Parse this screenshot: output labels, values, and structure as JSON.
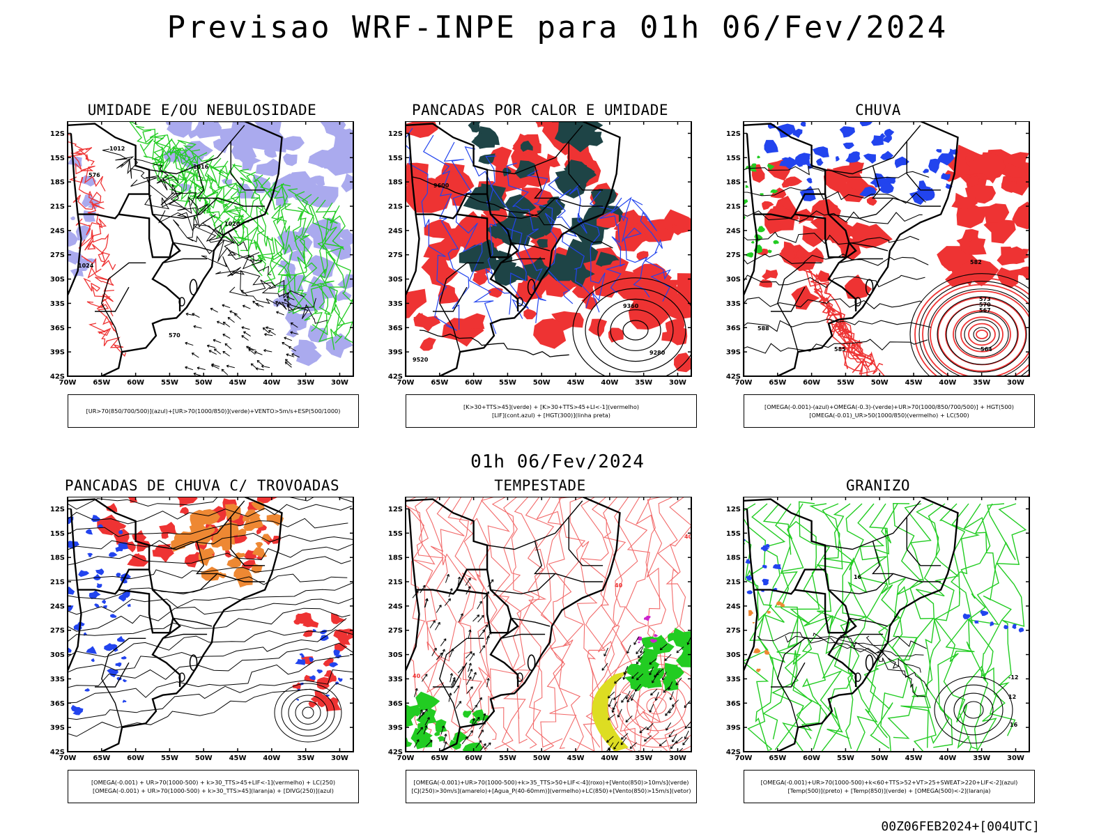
{
  "title": "Previsao WRF-INPE  para 01h 06/Fev/2024",
  "subtitle": "01h 06/Fev/2024",
  "footer": "00Z06FEB2024+[004UTC]",
  "axes": {
    "lat_labels": [
      "12S",
      "15S",
      "18S",
      "21S",
      "24S",
      "27S",
      "30S",
      "33S",
      "36S",
      "39S",
      "42S"
    ],
    "lon_labels": [
      "70W",
      "65W",
      "60W",
      "55W",
      "50W",
      "45W",
      "40W",
      "35W",
      "30W"
    ]
  },
  "colors": {
    "green": "#22cc22",
    "blue": "#2244ee",
    "red": "#ee3333",
    "light_red": "#f26a6a",
    "dark_teal": "#1e4446",
    "lavender": "#aaaaee",
    "orange": "#ee8833",
    "yellow": "#dddd22",
    "magenta": "#cc22cc"
  },
  "panels": [
    {
      "title": "UMIDADE E/OU NEBULOSIDADE",
      "legend": [
        "[UR>70(850/700/500)](azul)+[UR>70(1000/850)](verde)+VENTO>5m/s+ESP(500/1000)"
      ],
      "contour_labels": [
        "1012",
        "1016",
        "1020",
        "1024",
        "576",
        "570"
      ]
    },
    {
      "title": "PANCADAS POR CALOR E UMIDADE",
      "legend": [
        "[K>30+TTS>45](verde) + [K>30+TTS>45+LI<-1](vermelho)",
        "[LIF](cont.azul) + [HGT(300)](linha preta)"
      ],
      "contour_labels": [
        "9600",
        "9360",
        "9280",
        "9520"
      ]
    },
    {
      "title": "CHUVA",
      "legend": [
        "[OMEGA(-0.001)-(azul)+OMEGA(-0.3)-(verde)+UR>70(1000/850/700/500)] + HGT(500)",
        "[OMEGA(-0.01)_UR>50(1000/850)(vermelho) + LC(500)"
      ],
      "contour_labels": [
        "588",
        "585",
        "582",
        "573",
        "570",
        "567",
        "564"
      ]
    },
    {
      "title": "PANCADAS DE CHUVA C/ TROVOADAS",
      "legend": [
        "[OMEGA(-0.001) + UR>70(1000-500) + k>30_TTS>45+LIF<-1](vermelho) + LC(250)",
        "[OMEGA(-0.001) + UR>70(1000-500) + k>30_TTS>45](laranja) + [DIVG(250)](azul)"
      ],
      "contour_labels": []
    },
    {
      "title": "TEMPESTADE",
      "legend": [
        "[OMEGA(-0.001)+UR>70(1000-500)+k>35_TTS>50+LIF<-4](roxo)+[Vento(850)>10m/s](verde)",
        "[CJ(250)>30m/s](amarelo)+[Agua_P(40-60mm)](vermelho)+LC(850)+[Vento(850)>15m/s](vetor)"
      ],
      "contour_labels": [
        "40",
        "40",
        "40"
      ]
    },
    {
      "title": "GRANIZO",
      "legend": [
        "[OMEGA(-0.001)+UR>70(1000-500)+k<60+TTS>52+VT>25+SWEAT>220+LIF<-2](azul)",
        "[Temp(500)](preto) + [Temp(850)](verde) + [OMEGA(500)<-2](laranja)"
      ],
      "contour_labels": [
        "-12",
        "16",
        "12",
        "16"
      ]
    }
  ]
}
